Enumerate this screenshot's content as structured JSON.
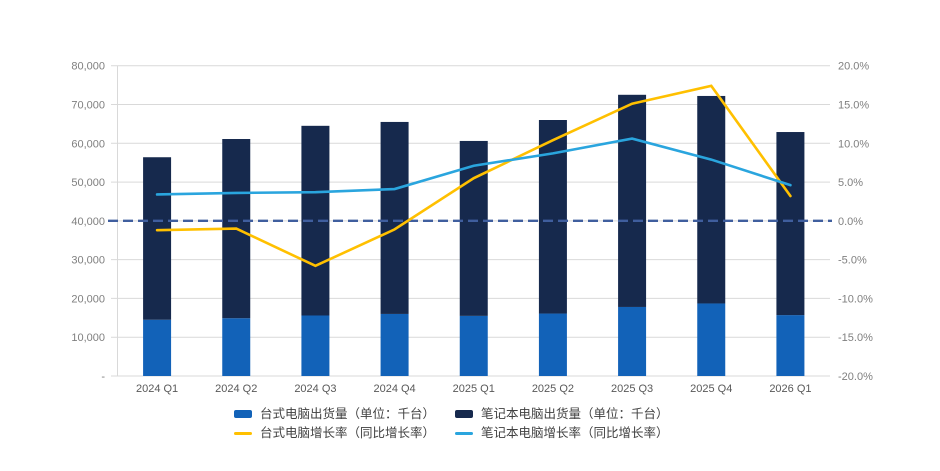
{
  "chart_data": {
    "type": "bar",
    "subtype": "stacked-bars-with-growth-lines",
    "title": "",
    "categories": [
      "2024 Q1",
      "2024 Q2",
      "2024 Q3",
      "2024 Q4",
      "2025 Q1",
      "2025 Q2",
      "2025 Q3",
      "2025 Q4",
      "2026 Q1"
    ],
    "series": [
      {
        "name": "台式电脑出货量（单位：千台）",
        "type": "bar",
        "stack": "shipments",
        "color": "#1262B8",
        "values": [
          14500,
          14900,
          15600,
          16000,
          15500,
          16100,
          17800,
          18700,
          15700
        ]
      },
      {
        "name": "笔记本电脑出货量（单位：千台）",
        "type": "bar",
        "stack": "shipments",
        "color": "#16294D",
        "values": [
          41900,
          46200,
          48900,
          49500,
          45100,
          49900,
          54700,
          53500,
          47200
        ]
      },
      {
        "name": "台式电脑增长率（同比增长率）",
        "type": "line",
        "axis": "right",
        "color": "#FFC000",
        "values_pct": [
          -1.2,
          -1.0,
          -5.8,
          -1.1,
          5.5,
          10.4,
          15.1,
          17.4,
          3.2
        ]
      },
      {
        "name": "笔记本电脑增长率（同比增长率）",
        "type": "line",
        "axis": "right",
        "color": "#2AA5DE",
        "values_pct": [
          3.4,
          3.6,
          3.7,
          4.1,
          7.1,
          8.7,
          10.6,
          7.9,
          4.6
        ]
      }
    ],
    "stacked_totals": [
      56400,
      61100,
      64500,
      65500,
      60600,
      66000,
      72500,
      72200,
      62900
    ],
    "left_axis": {
      "min": 0,
      "max": 80000,
      "ticks": [
        "80,000",
        "70,000",
        "60,000",
        "50,000",
        "40,000",
        "30,000",
        "20,000",
        "10,000",
        "-"
      ]
    },
    "right_axis": {
      "min": -20,
      "max": 20,
      "ticks": [
        "20.0%",
        "15.0%",
        "10.0%",
        "5.0%",
        "0.0%",
        "-5.0%",
        "-10.0%",
        "-15.0%",
        "-20.0%"
      ]
    },
    "zero_line": {
      "value_pct": 0,
      "style": "dashed",
      "color": "#3F5E9E"
    },
    "grid": true,
    "gridline_color": "#D9D9D9",
    "legend_position": "bottom"
  }
}
